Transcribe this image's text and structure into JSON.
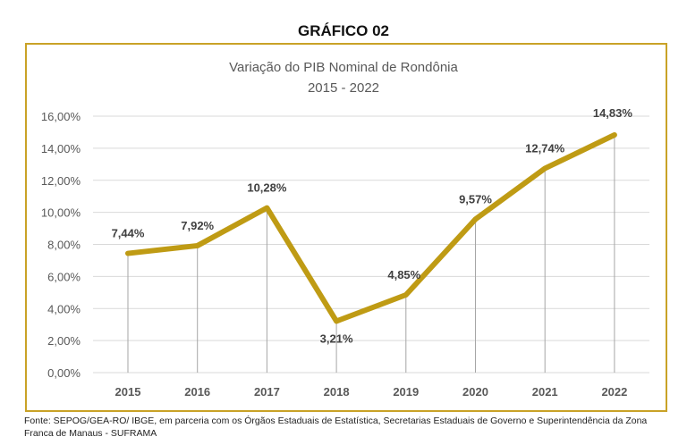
{
  "heading": "GRÁFICO 02",
  "source": "Fonte: SEPOG/GEA-RO/ IBGE, em parceria com os Órgãos Estaduais de Estatística, Secretarias Estaduais de Governo e Superintendência da Zona Franca de Manaus - SUFRAMA",
  "chart_data": {
    "type": "line",
    "title": "Variação do PIB Nominal de Rondônia",
    "subtitle": "2015 - 2022",
    "categories": [
      "2015",
      "2016",
      "2017",
      "2018",
      "2019",
      "2020",
      "2021",
      "2022"
    ],
    "series": [
      {
        "name": "Variação do PIB Nominal",
        "values": [
          7.44,
          7.92,
          10.28,
          3.21,
          4.85,
          9.57,
          12.74,
          14.83
        ],
        "color": "#BF9B14"
      }
    ],
    "data_labels": [
      "7,44%",
      "7,92%",
      "10,28%",
      "3,21%",
      "4,85%",
      "9,57%",
      "12,74%",
      "14,83%"
    ],
    "yticks": [
      0,
      2,
      4,
      6,
      8,
      10,
      12,
      14,
      16
    ],
    "ytick_labels": [
      "0,00%",
      "2,00%",
      "4,00%",
      "6,00%",
      "8,00%",
      "10,00%",
      "12,00%",
      "14,00%",
      "16,00%"
    ],
    "ylim": [
      0,
      16
    ],
    "xlabel": "",
    "ylabel": "",
    "grid": true,
    "legend": "none"
  }
}
